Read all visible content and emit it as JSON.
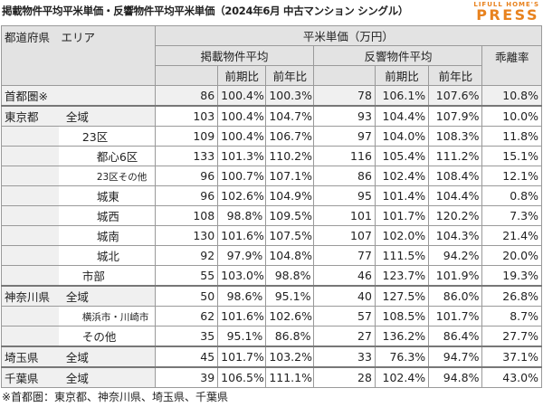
{
  "title": "掲載物件平均平米単価・反響物件平均平米単価（2024年6月 中古マンション シングル）",
  "logo": {
    "small": "LIFULL HOME'S",
    "big": "PRESS",
    "color": "#e8821e"
  },
  "header": {
    "region": "都道府県　エリア",
    "unit_price": "平米単価（万円）",
    "listed": "掲載物件平均",
    "inquired": "反響物件平均",
    "gap": "乖離率",
    "prev_period": "前期比",
    "prev_year": "前年比"
  },
  "rows": [
    {
      "pref": "首都圏※",
      "area": "",
      "indent": 0,
      "v1": "86",
      "v2": "100.4%",
      "v3": "100.3%",
      "v4": "78",
      "v5": "106.1%",
      "v6": "107.6%",
      "v7": "10.8%",
      "gray": true
    },
    {
      "pref": "東京都",
      "area": "全域",
      "indent": 1,
      "v1": "103",
      "v2": "100.4%",
      "v3": "104.7%",
      "v4": "93",
      "v5": "104.4%",
      "v6": "107.9%",
      "v7": "10.0%",
      "gray": false
    },
    {
      "pref": "",
      "area": "23区",
      "indent": 2,
      "v1": "109",
      "v2": "100.4%",
      "v3": "106.7%",
      "v4": "97",
      "v5": "104.0%",
      "v6": "108.3%",
      "v7": "11.8%",
      "gray": false
    },
    {
      "pref": "",
      "area": "都心6区",
      "indent": 3,
      "v1": "133",
      "v2": "101.3%",
      "v3": "110.2%",
      "v4": "116",
      "v5": "105.4%",
      "v6": "111.2%",
      "v7": "15.1%",
      "gray": false
    },
    {
      "pref": "",
      "area": "23区その他",
      "indent": 3,
      "small": true,
      "v1": "96",
      "v2": "100.7%",
      "v3": "107.1%",
      "v4": "86",
      "v5": "102.4%",
      "v6": "108.4%",
      "v7": "12.1%",
      "gray": false
    },
    {
      "pref": "",
      "area": "城東",
      "indent": 3,
      "v1": "96",
      "v2": "102.6%",
      "v3": "104.9%",
      "v4": "95",
      "v5": "101.4%",
      "v6": "104.4%",
      "v7": "0.8%",
      "gray": false
    },
    {
      "pref": "",
      "area": "城西",
      "indent": 3,
      "v1": "108",
      "v2": "98.8%",
      "v3": "109.5%",
      "v4": "101",
      "v5": "101.7%",
      "v6": "120.2%",
      "v7": "7.3%",
      "gray": false
    },
    {
      "pref": "",
      "area": "城南",
      "indent": 3,
      "v1": "130",
      "v2": "101.6%",
      "v3": "107.5%",
      "v4": "107",
      "v5": "102.0%",
      "v6": "104.3%",
      "v7": "21.4%",
      "gray": false
    },
    {
      "pref": "",
      "area": "城北",
      "indent": 3,
      "v1": "92",
      "v2": "97.9%",
      "v3": "104.8%",
      "v4": "77",
      "v5": "111.5%",
      "v6": "94.2%",
      "v7": "20.0%",
      "gray": false
    },
    {
      "pref": "",
      "area": "市部",
      "indent": 2,
      "v1": "55",
      "v2": "103.0%",
      "v3": "98.8%",
      "v4": "46",
      "v5": "123.7%",
      "v6": "101.9%",
      "v7": "19.3%",
      "gray": false
    },
    {
      "pref": "神奈川県",
      "area": "全域",
      "indent": 1,
      "v1": "50",
      "v2": "98.6%",
      "v3": "95.1%",
      "v4": "40",
      "v5": "127.5%",
      "v6": "86.0%",
      "v7": "26.8%",
      "gray": false
    },
    {
      "pref": "",
      "area": "横浜市・川崎市",
      "indent": 2,
      "small": true,
      "v1": "62",
      "v2": "101.6%",
      "v3": "102.6%",
      "v4": "57",
      "v5": "108.5%",
      "v6": "101.7%",
      "v7": "8.7%",
      "gray": false
    },
    {
      "pref": "",
      "area": "その他",
      "indent": 2,
      "v1": "35",
      "v2": "95.1%",
      "v3": "86.8%",
      "v4": "27",
      "v5": "136.2%",
      "v6": "86.4%",
      "v7": "27.7%",
      "gray": false
    },
    {
      "pref": "埼玉県",
      "area": "全域",
      "indent": 1,
      "v1": "45",
      "v2": "101.7%",
      "v3": "103.2%",
      "v4": "33",
      "v5": "76.3%",
      "v6": "94.7%",
      "v7": "37.1%",
      "gray": false
    },
    {
      "pref": "千葉県",
      "area": "全域",
      "indent": 1,
      "v1": "39",
      "v2": "106.5%",
      "v3": "111.1%",
      "v4": "28",
      "v5": "102.4%",
      "v6": "94.8%",
      "v7": "43.0%",
      "gray": false
    }
  ],
  "footnote": "※首都圏：東京都、神奈川県、埼玉県、千葉県"
}
